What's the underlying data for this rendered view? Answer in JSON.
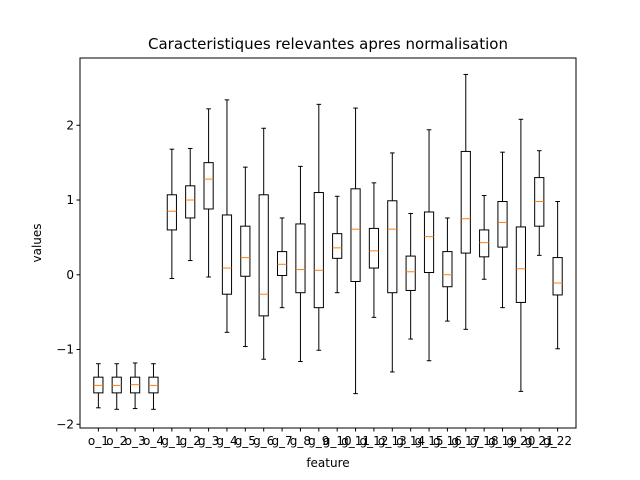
{
  "chart_data": {
    "type": "boxplot",
    "title": "Caracteristiques relevantes apres normalisation",
    "xlabel": "feature",
    "ylabel": "values",
    "ylim": [
      -2.05,
      2.9
    ],
    "yticks": [
      -2,
      -1,
      0,
      1,
      2
    ],
    "ytick_labels": [
      "−2",
      "−1",
      "0",
      "1",
      "2"
    ],
    "grid": false,
    "categories": [
      "o_1",
      "o_2",
      "o_3",
      "o_4",
      "g_1",
      "g_2",
      "g_3",
      "g_4",
      "g_5",
      "g_6",
      "g_7",
      "g_8",
      "g_9",
      "g_10",
      "g_11",
      "g_12",
      "g_13",
      "g_14",
      "g_15",
      "g_16",
      "g_17",
      "g_18",
      "g_19",
      "g_20",
      "g_21",
      "g_22"
    ],
    "series": [
      {
        "boxes": [
          {
            "whislo": -1.78,
            "q1": -1.58,
            "med": -1.48,
            "q3": -1.37,
            "whishi": -1.19
          },
          {
            "whislo": -1.8,
            "q1": -1.58,
            "med": -1.48,
            "q3": -1.37,
            "whishi": -1.19
          },
          {
            "whislo": -1.79,
            "q1": -1.58,
            "med": -1.47,
            "q3": -1.37,
            "whishi": -1.18
          },
          {
            "whislo": -1.8,
            "q1": -1.58,
            "med": -1.48,
            "q3": -1.37,
            "whishi": -1.19
          },
          {
            "whislo": -0.05,
            "q1": 0.6,
            "med": 0.85,
            "q3": 1.07,
            "whishi": 1.68
          },
          {
            "whislo": 0.19,
            "q1": 0.76,
            "med": 1.0,
            "q3": 1.19,
            "whishi": 1.69
          },
          {
            "whislo": -0.03,
            "q1": 0.88,
            "med": 1.28,
            "q3": 1.5,
            "whishi": 2.22
          },
          {
            "whislo": -0.77,
            "q1": -0.26,
            "med": 0.09,
            "q3": 0.8,
            "whishi": 2.34
          },
          {
            "whislo": -0.96,
            "q1": -0.02,
            "med": 0.23,
            "q3": 0.65,
            "whishi": 1.44
          },
          {
            "whislo": -1.13,
            "q1": -0.55,
            "med": -0.26,
            "q3": 1.07,
            "whishi": 1.96
          },
          {
            "whislo": -0.44,
            "q1": -0.01,
            "med": 0.14,
            "q3": 0.31,
            "whishi": 0.76
          },
          {
            "whislo": -1.16,
            "q1": -0.24,
            "med": 0.07,
            "q3": 0.68,
            "whishi": 1.45
          },
          {
            "whislo": -1.01,
            "q1": -0.44,
            "med": 0.06,
            "q3": 1.1,
            "whishi": 2.28
          },
          {
            "whislo": -0.24,
            "q1": 0.22,
            "med": 0.36,
            "q3": 0.55,
            "whishi": 1.05
          },
          {
            "whislo": -1.59,
            "q1": -0.09,
            "med": 0.61,
            "q3": 1.15,
            "whishi": 2.23
          },
          {
            "whislo": -0.57,
            "q1": 0.09,
            "med": 0.32,
            "q3": 0.62,
            "whishi": 1.23
          },
          {
            "whislo": -1.3,
            "q1": -0.24,
            "med": 0.61,
            "q3": 0.99,
            "whishi": 1.63
          },
          {
            "whislo": -0.86,
            "q1": -0.21,
            "med": 0.04,
            "q3": 0.25,
            "whishi": 0.82
          },
          {
            "whislo": -1.15,
            "q1": 0.03,
            "med": 0.51,
            "q3": 0.84,
            "whishi": 1.94
          },
          {
            "whislo": -0.62,
            "q1": -0.16,
            "med": 0.0,
            "q3": 0.31,
            "whishi": 0.76
          },
          {
            "whislo": -0.73,
            "q1": 0.29,
            "med": 0.75,
            "q3": 1.65,
            "whishi": 2.68
          },
          {
            "whislo": -0.06,
            "q1": 0.24,
            "med": 0.43,
            "q3": 0.6,
            "whishi": 1.06
          },
          {
            "whislo": -0.44,
            "q1": 0.37,
            "med": 0.7,
            "q3": 0.98,
            "whishi": 1.64
          },
          {
            "whislo": -1.56,
            "q1": -0.37,
            "med": 0.08,
            "q3": 0.64,
            "whishi": 2.08
          },
          {
            "whislo": 0.26,
            "q1": 0.65,
            "med": 0.98,
            "q3": 1.3,
            "whishi": 1.66
          },
          {
            "whislo": -0.99,
            "q1": -0.27,
            "med": -0.11,
            "q3": 0.23,
            "whishi": 0.98
          }
        ]
      }
    ],
    "colors": {
      "box": "#000000",
      "median": "#ff7f0e"
    }
  }
}
